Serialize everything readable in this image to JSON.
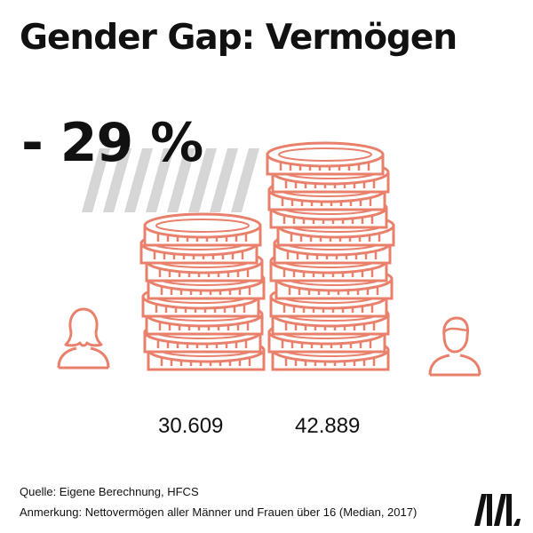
{
  "title": "Gender Gap: Vermögen",
  "gap_label": "- 29 %",
  "women": {
    "value_label": "30.609",
    "icon": "woman-icon"
  },
  "men": {
    "value_label": "42.889",
    "icon": "man-icon"
  },
  "source": "Quelle: Eigene Berechnung, HFCS",
  "note": "Anmerkung: Nettovermögen aller Männer und Frauen über 16 (Median, 2017)",
  "colors": {
    "coin": "#e9806b",
    "stripe": "#d6d6d6",
    "text": "#111111"
  },
  "logo_icon": "momentum-logo-icon"
}
